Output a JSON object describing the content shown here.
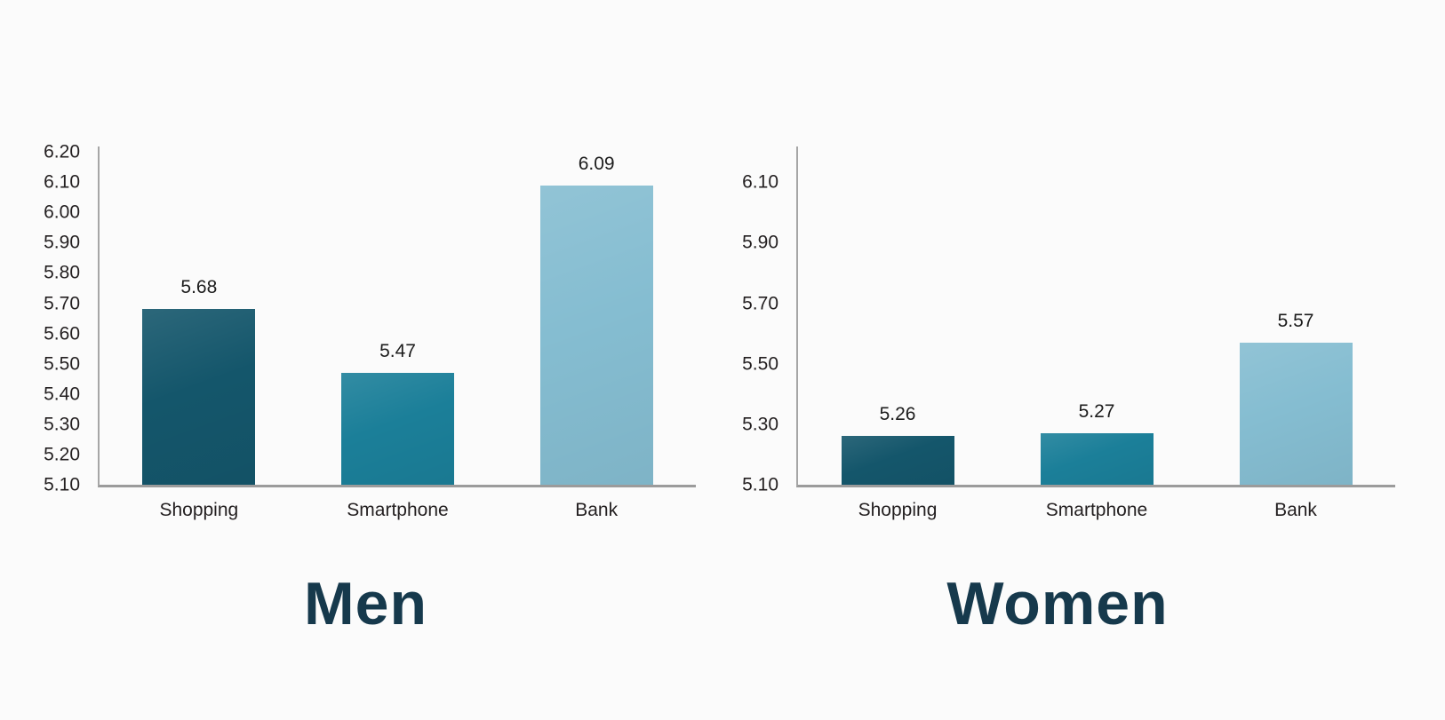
{
  "figure": {
    "background": "#fbfbfb",
    "description": "Two side-by-side bar charts comparing mean scores of Shopping, Smartphone and Bank for Men and Women"
  },
  "style": {
    "bar_color_shopping": "#14566b",
    "bar_color_smartphone": "#1b7f99",
    "bar_color_bank": "#85bdd1",
    "title_color": "#16394c",
    "tick_text_color": "#231f20",
    "value_text_color": "#1c1c1c",
    "axis_vertical_color": "#a6a6a6",
    "axis_horizontal_color": "#9b9b9b"
  },
  "chart_data": [
    {
      "type": "bar",
      "title": "Men",
      "categories": [
        "Shopping",
        "Smartphone",
        "Bank"
      ],
      "values": [
        5.68,
        5.47,
        6.09
      ],
      "value_labels": [
        "5.68",
        "5.47",
        "6.09"
      ],
      "bar_colors": [
        "#14566b",
        "#1b7f99",
        "#85bdd1"
      ],
      "ytick_labels": [
        "6.20",
        "6.10",
        "6.00",
        "5.90",
        "5.80",
        "5.70",
        "5.60",
        "5.50",
        "5.40",
        "5.30",
        "5.20",
        "5.10"
      ],
      "ylim": [
        5.1,
        6.218
      ],
      "xlabel": "",
      "ylabel": "",
      "grid": false,
      "legend": "none"
    },
    {
      "type": "bar",
      "title": "Women",
      "categories": [
        "Shopping",
        "Smartphone",
        "Bank"
      ],
      "values": [
        5.26,
        5.27,
        5.57
      ],
      "value_labels": [
        "5.26",
        "5.27",
        "5.57"
      ],
      "bar_colors": [
        "#14566b",
        "#1b7f99",
        "#85bdd1"
      ],
      "ytick_labels": [
        "6.10",
        "5.90",
        "5.70",
        "5.50",
        "5.30",
        "5.10"
      ],
      "ylim": [
        5.1,
        6.218
      ],
      "xlabel": "",
      "ylabel": "",
      "grid": false,
      "legend": "none"
    }
  ]
}
